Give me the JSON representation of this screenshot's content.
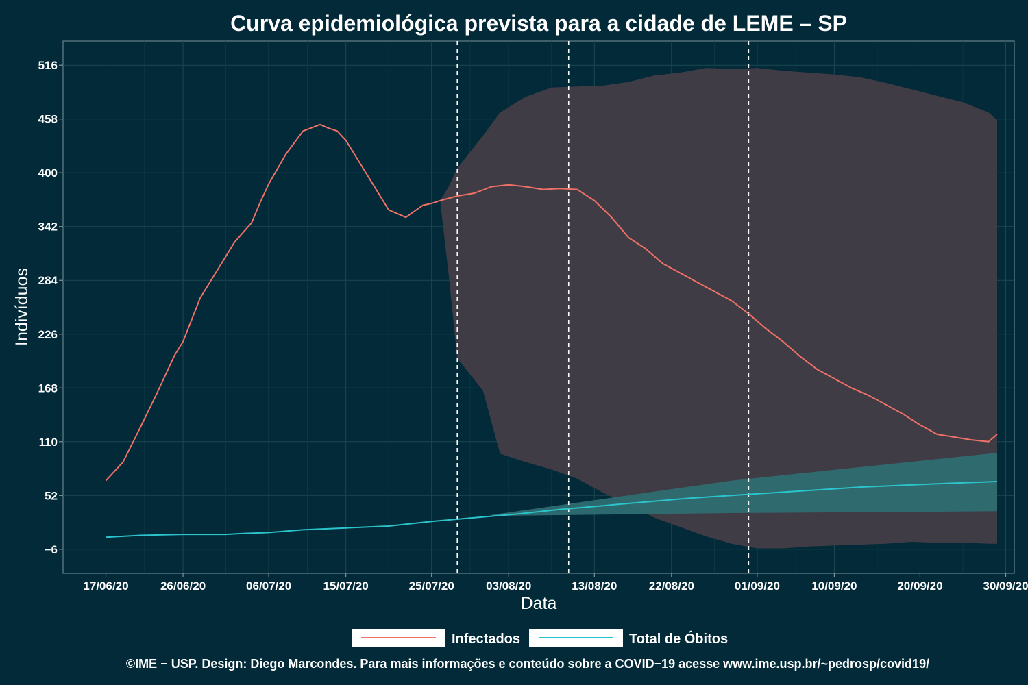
{
  "chart_data": {
    "type": "line",
    "title": "Curva epidemiológica prevista para a cidade de LEME – SP",
    "xlabel": "Data",
    "ylabel": "Indivíduos",
    "x_tick_labels": [
      "17/06/20",
      "26/06/20",
      "06/07/20",
      "15/07/20",
      "25/07/20",
      "03/08/20",
      "13/08/20",
      "22/08/20",
      "01/09/20",
      "10/09/20",
      "20/09/20",
      "30/09/20"
    ],
    "y_ticks": [
      -6,
      52,
      110,
      168,
      226,
      284,
      342,
      400,
      458,
      516
    ],
    "ylim": [
      -32,
      542
    ],
    "x_domain": [
      "2020-06-12",
      "2020-10-01"
    ],
    "grid": true,
    "vertical_reference_lines": [
      "2020-07-28",
      "2020-08-10",
      "2020-08-31"
    ],
    "legend": {
      "position": "bottom",
      "entries": [
        "Infectados",
        "Total de Óbitos"
      ]
    },
    "caption": "©IME − USP. Design: Diego Marcondes. Para mais informações e conteúdo sobre a COVID−19 acesse www.ime.usp.br/~pedrosp/covid19/",
    "series": [
      {
        "name": "Infectados",
        "color": "#f07167",
        "x": [
          "2020-06-17",
          "2020-06-19",
          "2020-06-21",
          "2020-06-23",
          "2020-06-25",
          "2020-06-26",
          "2020-06-28",
          "2020-06-30",
          "2020-07-02",
          "2020-07-04",
          "2020-07-05",
          "2020-07-06",
          "2020-07-08",
          "2020-07-10",
          "2020-07-12",
          "2020-07-13",
          "2020-07-14",
          "2020-07-15",
          "2020-07-16",
          "2020-07-18",
          "2020-07-20",
          "2020-07-22",
          "2020-07-24",
          "2020-07-25",
          "2020-07-26",
          "2020-07-28",
          "2020-07-30",
          "2020-08-01",
          "2020-08-03",
          "2020-08-05",
          "2020-08-07",
          "2020-08-09",
          "2020-08-11",
          "2020-08-13",
          "2020-08-15",
          "2020-08-17",
          "2020-08-19",
          "2020-08-21",
          "2020-08-23",
          "2020-08-25",
          "2020-08-27",
          "2020-08-29",
          "2020-08-31",
          "2020-09-02",
          "2020-09-04",
          "2020-09-06",
          "2020-09-08",
          "2020-09-10",
          "2020-09-12",
          "2020-09-14",
          "2020-09-16",
          "2020-09-18",
          "2020-09-20",
          "2020-09-22",
          "2020-09-24",
          "2020-09-26",
          "2020-09-28",
          "2020-09-29"
        ],
        "y": [
          68,
          88,
          125,
          163,
          203,
          218,
          265,
          295,
          325,
          346,
          368,
          388,
          420,
          445,
          452,
          448,
          445,
          435,
          420,
          390,
          360,
          352,
          365,
          367,
          370,
          375,
          378,
          385,
          387,
          385,
          382,
          383,
          382,
          370,
          352,
          330,
          318,
          302,
          292,
          282,
          272,
          262,
          248,
          232,
          218,
          202,
          188,
          178,
          168,
          160,
          150,
          140,
          128,
          118,
          115,
          112,
          110,
          118
        ]
      },
      {
        "name": "Total de Óbitos",
        "color": "#2bc4cc",
        "x": [
          "2020-06-17",
          "2020-06-21",
          "2020-06-26",
          "2020-07-01",
          "2020-07-03",
          "2020-07-06",
          "2020-07-10",
          "2020-07-15",
          "2020-07-20",
          "2020-07-25",
          "2020-07-30",
          "2020-08-04",
          "2020-08-09",
          "2020-08-14",
          "2020-08-19",
          "2020-08-24",
          "2020-08-29",
          "2020-09-03",
          "2020-09-08",
          "2020-09-13",
          "2020-09-18",
          "2020-09-23",
          "2020-09-29"
        ],
        "y": [
          7,
          9,
          10,
          10,
          11,
          12,
          15,
          17,
          19,
          24,
          28,
          32,
          37,
          41,
          45,
          49,
          52,
          55,
          58,
          61,
          63,
          65,
          67
        ]
      }
    ],
    "bands": [
      {
        "for_series": "Infectados",
        "color": "#433d46",
        "x": [
          "2020-07-26",
          "2020-07-27",
          "2020-07-28",
          "2020-07-31",
          "2020-08-02",
          "2020-08-05",
          "2020-08-08",
          "2020-08-11",
          "2020-08-14",
          "2020-08-17",
          "2020-08-20",
          "2020-08-23",
          "2020-08-26",
          "2020-08-29",
          "2020-09-01",
          "2020-09-04",
          "2020-09-07",
          "2020-09-10",
          "2020-09-13",
          "2020-09-16",
          "2020-09-19",
          "2020-09-22",
          "2020-09-25",
          "2020-09-28",
          "2020-09-29"
        ],
        "upper": [
          370,
          385,
          405,
          440,
          465,
          482,
          492,
          493,
          494,
          498,
          505,
          508,
          513,
          512,
          513,
          510,
          508,
          506,
          503,
          497,
          490,
          483,
          476,
          465,
          457
        ],
        "lower": [
          370,
          290,
          200,
          165,
          97,
          88,
          80,
          70,
          55,
          42,
          28,
          18,
          8,
          0,
          -5,
          -5,
          -3,
          -2,
          -1,
          0,
          2,
          1,
          1,
          0,
          0
        ]
      },
      {
        "for_series": "Total de Óbitos",
        "color": "#2e6d72",
        "x": [
          "2020-08-01",
          "2020-08-29",
          "2020-09-29"
        ],
        "upper": [
          31,
          68,
          98
        ],
        "lower": [
          30,
          33,
          35
        ]
      }
    ]
  }
}
